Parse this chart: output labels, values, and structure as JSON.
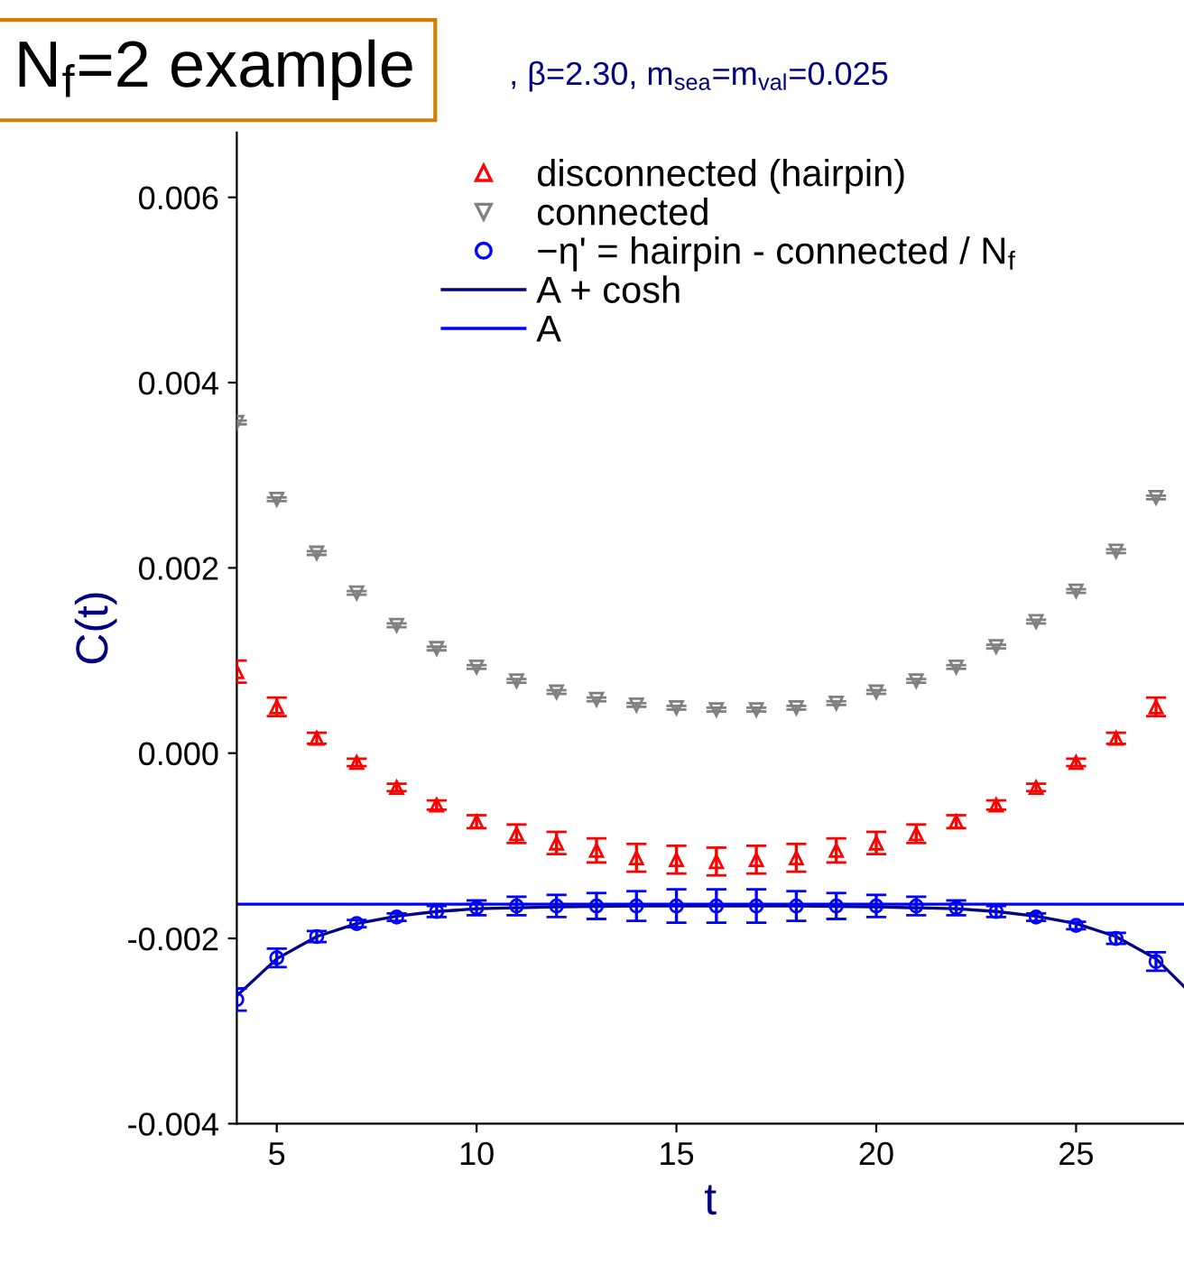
{
  "chart_data": {
    "type": "scatter",
    "title": ", β=2.30, m$_{sea}$=m$_{val}$=0.025",
    "annotations": [
      "N$_{f}$=2 example"
    ],
    "xlabel": "t",
    "ylabel": "C(t)",
    "xlim": [
      4,
      27.7
    ],
    "xticks": [
      5,
      10,
      15,
      20,
      25
    ],
    "ylim": [
      -0.004,
      0.0067
    ],
    "yticks": [
      -0.004,
      -0.002,
      {
        "value": 0,
        "label": "0.000"
      },
      0.002,
      0.004,
      0.006
    ],
    "legend": "top",
    "grid": false,
    "series": [
      {
        "name": "disconnected (hairpin)",
        "marker": "triangle",
        "color": "#ff0000",
        "x": [
          4,
          5,
          6,
          7,
          8,
          9,
          10,
          11,
          12,
          13,
          14,
          15,
          16,
          17,
          18,
          19,
          20,
          21,
          22,
          23,
          24,
          25,
          26,
          27
        ],
        "values": [
          0.00088,
          0.0005,
          0.00016,
          -0.0001,
          -0.00037,
          -0.00056,
          -0.00074,
          -0.00087,
          -0.00097,
          -0.00105,
          -0.00113,
          -0.00115,
          -0.00117,
          -0.00115,
          -0.00113,
          -0.00105,
          -0.00097,
          -0.00087,
          -0.00074,
          -0.00056,
          -0.00037,
          -0.0001,
          0.00016,
          0.0005
        ],
        "errors": [
          0.00012,
          0.0001,
          6e-05,
          4e-05,
          4e-05,
          5e-05,
          7e-05,
          0.0001,
          0.00012,
          0.00013,
          0.00015,
          0.00015,
          0.00015,
          0.00015,
          0.00015,
          0.00013,
          0.00012,
          0.0001,
          7e-05,
          5e-05,
          4e-05,
          4e-05,
          6e-05,
          0.0001
        ]
      },
      {
        "name": "connected",
        "marker": "triangle_down",
        "color": "#808080",
        "x": [
          4,
          5,
          6,
          7,
          8,
          9,
          10,
          11,
          12,
          13,
          14,
          15,
          16,
          17,
          18,
          19,
          20,
          21,
          22,
          23,
          24,
          25,
          26,
          27
        ],
        "values": [
          0.00357,
          0.00274,
          0.00216,
          0.00173,
          0.00138,
          0.00113,
          0.00093,
          0.00078,
          0.00066,
          0.00058,
          0.00052,
          0.00049,
          0.00047,
          0.00047,
          0.00049,
          0.00054,
          0.00066,
          0.00078,
          0.00093,
          0.00115,
          0.00142,
          0.00175,
          0.00218,
          0.00276
        ],
        "errors": [
          2e-05,
          2e-05,
          2e-05,
          2e-05,
          2e-05,
          2e-05,
          2e-05,
          2e-05,
          2e-05,
          2e-05,
          2e-05,
          2e-05,
          2e-05,
          2e-05,
          2e-05,
          2e-05,
          2e-05,
          2e-05,
          2e-05,
          2e-05,
          2e-05,
          2e-05,
          2e-05,
          2e-05
        ]
      },
      {
        "name": "−η' = hairpin - connected / N$_{f}$",
        "marker": "circle",
        "color": "#0000ff",
        "x": [
          4,
          5,
          6,
          7,
          8,
          9,
          10,
          11,
          12,
          13,
          14,
          15,
          16,
          17,
          18,
          19,
          20,
          21,
          22,
          23,
          24,
          25,
          26,
          27
        ],
        "values": [
          -0.00266,
          -0.00221,
          -0.00198,
          -0.00184,
          -0.00177,
          -0.00171,
          -0.00167,
          -0.00165,
          -0.00165,
          -0.00165,
          -0.00165,
          -0.00165,
          -0.00165,
          -0.00165,
          -0.00165,
          -0.00165,
          -0.00165,
          -0.00165,
          -0.00167,
          -0.00171,
          -0.00177,
          -0.00186,
          -0.002,
          -0.00225
        ],
        "errors": [
          0.00012,
          0.0001,
          6e-05,
          4e-05,
          4e-05,
          6e-05,
          8e-05,
          0.0001,
          0.00012,
          0.00014,
          0.00016,
          0.00018,
          0.00018,
          0.00018,
          0.00016,
          0.00014,
          0.00012,
          0.0001,
          8e-05,
          6e-05,
          4e-05,
          4e-05,
          6e-05,
          0.0001
        ]
      },
      {
        "name": "A + cosh",
        "type": "line",
        "line_style": "solid",
        "color": "#000080",
        "x": [
          4,
          5,
          6,
          7,
          8,
          9,
          10,
          12,
          14,
          16,
          18,
          20,
          22,
          23,
          24,
          25,
          26,
          27,
          27.7
        ],
        "values": [
          -0.00262,
          -0.00222,
          -0.00198,
          -0.00184,
          -0.00176,
          -0.00171,
          -0.00168,
          -0.00166,
          -0.00165,
          -0.00165,
          -0.00165,
          -0.00166,
          -0.00168,
          -0.00171,
          -0.00176,
          -0.00184,
          -0.00198,
          -0.00222,
          -0.00252
        ]
      },
      {
        "name": "A",
        "type": "line",
        "line_style": "solid",
        "color": "#0000ff",
        "x": [
          4,
          27.7
        ],
        "values": [
          -0.00163,
          -0.00163
        ]
      }
    ]
  }
}
